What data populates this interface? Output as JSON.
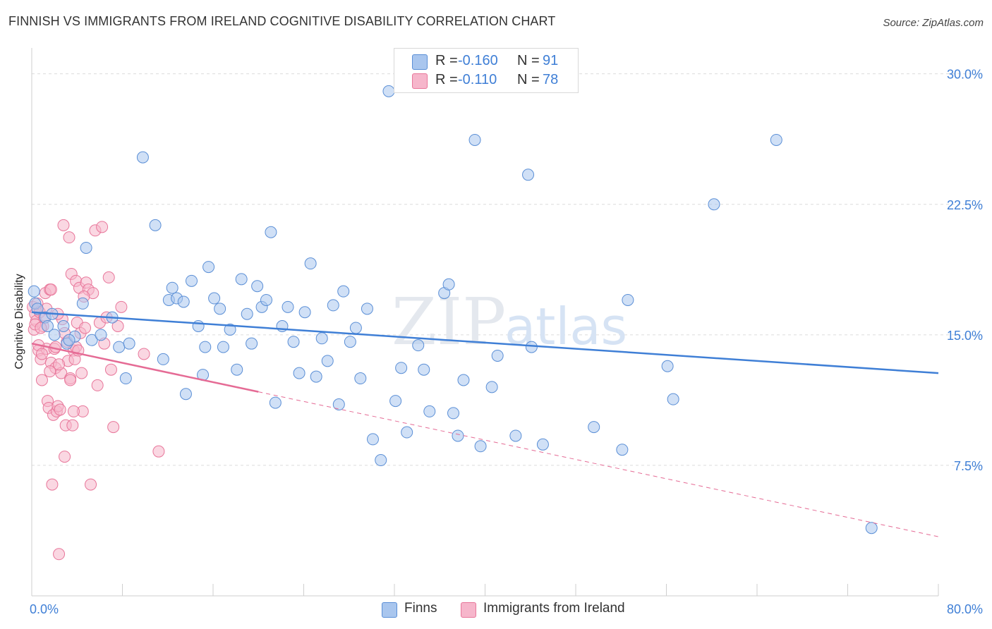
{
  "title": "FINNISH VS IMMIGRANTS FROM IRELAND COGNITIVE DISABILITY CORRELATION CHART",
  "source": "Source: ZipAtlas.com",
  "watermark": {
    "zip": "ZIP",
    "atlas": "atlas"
  },
  "colors": {
    "blue": "#5b8fd6",
    "blue_fill": "#a9c6ee",
    "blue_line": "#3f7fd6",
    "pink": "#e8769a",
    "pink_fill": "#f6b6cb",
    "pink_line": "#e56b95",
    "axis_text": "#3f7fd6",
    "grid": "#dcdcdc"
  },
  "stats": [
    {
      "r_label": "R =",
      "r_value": "-0.160",
      "n_label": "N =",
      "n_value": "91",
      "color": "#a9c6ee",
      "border": "#5b8fd6",
      "value_color": "#3f7fd6"
    },
    {
      "r_label": "R =",
      "r_value": "-0.110",
      "n_label": "N =",
      "n_value": "78",
      "color": "#f6b6cb",
      "border": "#e8769a",
      "value_color": "#3f7fd6"
    }
  ],
  "legend": [
    {
      "label": "Finns",
      "color": "#a9c6ee",
      "border": "#5b8fd6"
    },
    {
      "label": "Immigrants from Ireland",
      "color": "#f6b6cb",
      "border": "#e8769a"
    }
  ],
  "chart_data": {
    "type": "scatter",
    "title": "FINNISH VS IMMIGRANTS FROM IRELAND COGNITIVE DISABILITY CORRELATION CHART",
    "xlabel": "",
    "ylabel": "Cognitive Disability",
    "xlim": [
      0,
      80
    ],
    "ylim": [
      0,
      31
    ],
    "x_tick_labels": [
      {
        "value": 0,
        "label": "0.0%"
      },
      {
        "value": 80,
        "label": "80.0%"
      }
    ],
    "y_tick_labels": [
      {
        "value": 7.5,
        "label": "7.5%"
      },
      {
        "value": 15,
        "label": "15.0%"
      },
      {
        "value": 22.5,
        "label": "22.5%"
      },
      {
        "value": 30,
        "label": "30.0%"
      }
    ],
    "grid": true,
    "series": [
      {
        "name": "Finns",
        "r": -0.16,
        "n": 91,
        "trend": {
          "x": [
            0,
            80
          ],
          "y": [
            16.3,
            12.8
          ]
        },
        "points": [
          [
            0.2,
            17.5
          ],
          [
            0.3,
            16.8
          ],
          [
            0.5,
            16.5
          ],
          [
            1.2,
            16.0
          ],
          [
            1.4,
            15.5
          ],
          [
            1.8,
            16.2
          ],
          [
            2.0,
            15.0
          ],
          [
            2.8,
            15.5
          ],
          [
            3.1,
            14.5
          ],
          [
            3.8,
            14.9
          ],
          [
            3.3,
            14.7
          ],
          [
            4.5,
            16.8
          ],
          [
            5.3,
            14.7
          ],
          [
            4.8,
            20.0
          ],
          [
            6.1,
            15.0
          ],
          [
            7.1,
            16.0
          ],
          [
            7.7,
            14.3
          ],
          [
            8.6,
            14.5
          ],
          [
            8.3,
            12.5
          ],
          [
            9.8,
            25.2
          ],
          [
            10.9,
            21.3
          ],
          [
            11.6,
            13.6
          ],
          [
            12.1,
            17.0
          ],
          [
            12.4,
            17.7
          ],
          [
            12.8,
            17.1
          ],
          [
            13.4,
            16.9
          ],
          [
            13.6,
            11.6
          ],
          [
            14.1,
            18.1
          ],
          [
            14.7,
            15.5
          ],
          [
            15.1,
            12.7
          ],
          [
            15.3,
            14.3
          ],
          [
            15.6,
            18.9
          ],
          [
            16.1,
            17.1
          ],
          [
            16.6,
            16.5
          ],
          [
            16.9,
            14.3
          ],
          [
            17.5,
            15.3
          ],
          [
            18.1,
            13.0
          ],
          [
            18.5,
            18.2
          ],
          [
            19.0,
            16.2
          ],
          [
            19.4,
            14.5
          ],
          [
            19.9,
            17.8
          ],
          [
            20.3,
            16.6
          ],
          [
            20.7,
            17.0
          ],
          [
            21.1,
            20.9
          ],
          [
            21.5,
            11.1
          ],
          [
            22.1,
            15.5
          ],
          [
            22.6,
            16.6
          ],
          [
            23.1,
            14.6
          ],
          [
            23.6,
            12.8
          ],
          [
            24.1,
            16.3
          ],
          [
            24.6,
            19.1
          ],
          [
            25.1,
            12.6
          ],
          [
            25.6,
            14.8
          ],
          [
            26.1,
            13.5
          ],
          [
            26.6,
            16.7
          ],
          [
            27.1,
            11.0
          ],
          [
            27.5,
            17.5
          ],
          [
            28.1,
            14.6
          ],
          [
            28.6,
            15.4
          ],
          [
            29.0,
            12.5
          ],
          [
            29.6,
            16.5
          ],
          [
            30.1,
            9.0
          ],
          [
            30.8,
            7.8
          ],
          [
            31.5,
            29.0
          ],
          [
            32.1,
            11.2
          ],
          [
            32.6,
            13.1
          ],
          [
            33.1,
            9.4
          ],
          [
            34.1,
            14.4
          ],
          [
            34.6,
            13.0
          ],
          [
            35.1,
            10.6
          ],
          [
            36.4,
            17.4
          ],
          [
            36.8,
            17.9
          ],
          [
            37.2,
            10.5
          ],
          [
            37.6,
            9.2
          ],
          [
            38.1,
            12.4
          ],
          [
            39.1,
            26.2
          ],
          [
            39.6,
            8.6
          ],
          [
            40.6,
            12.0
          ],
          [
            41.1,
            13.8
          ],
          [
            42.7,
            9.2
          ],
          [
            43.8,
            24.2
          ],
          [
            44.1,
            14.3
          ],
          [
            45.1,
            8.7
          ],
          [
            49.6,
            9.7
          ],
          [
            52.1,
            8.4
          ],
          [
            52.6,
            17.0
          ],
          [
            56.1,
            13.2
          ],
          [
            56.6,
            11.3
          ],
          [
            60.2,
            22.5
          ],
          [
            65.7,
            26.2
          ],
          [
            74.1,
            3.9
          ]
        ]
      },
      {
        "name": "Immigrants from Ireland",
        "r": -0.11,
        "n": 78,
        "trend": {
          "x": [
            0,
            80
          ],
          "y": [
            14.5,
            3.4
          ]
        },
        "trend_solid_end_x": 20,
        "points": [
          [
            0.1,
            16.6
          ],
          [
            0.2,
            15.3
          ],
          [
            0.3,
            16.2
          ],
          [
            0.4,
            15.8
          ],
          [
            0.5,
            16.8
          ],
          [
            0.6,
            14.1
          ],
          [
            0.7,
            16.3
          ],
          [
            0.8,
            13.6
          ],
          [
            0.9,
            12.4
          ],
          [
            1.0,
            15.5
          ],
          [
            1.1,
            16.0
          ],
          [
            1.2,
            17.4
          ],
          [
            1.3,
            14.2
          ],
          [
            1.4,
            11.2
          ],
          [
            1.5,
            10.8
          ],
          [
            1.6,
            17.6
          ],
          [
            1.7,
            13.4
          ],
          [
            1.8,
            6.4
          ],
          [
            1.9,
            10.4
          ],
          [
            2.0,
            14.2
          ],
          [
            2.1,
            13.1
          ],
          [
            2.2,
            10.6
          ],
          [
            2.3,
            10.9
          ],
          [
            2.4,
            2.4
          ],
          [
            2.5,
            10.7
          ],
          [
            2.6,
            12.8
          ],
          [
            2.7,
            15.9
          ],
          [
            2.8,
            21.3
          ],
          [
            2.9,
            8.0
          ],
          [
            3.0,
            9.8
          ],
          [
            3.1,
            14.6
          ],
          [
            3.2,
            13.5
          ],
          [
            3.3,
            20.6
          ],
          [
            3.4,
            12.5
          ],
          [
            3.5,
            18.5
          ],
          [
            3.6,
            9.8
          ],
          [
            3.7,
            14.1
          ],
          [
            3.8,
            13.6
          ],
          [
            3.9,
            18.1
          ],
          [
            4.0,
            15.7
          ],
          [
            4.2,
            17.7
          ],
          [
            4.3,
            15.1
          ],
          [
            4.4,
            12.8
          ],
          [
            4.5,
            10.6
          ],
          [
            4.7,
            15.4
          ],
          [
            4.8,
            18.0
          ],
          [
            5.0,
            17.6
          ],
          [
            5.2,
            6.4
          ],
          [
            5.4,
            17.4
          ],
          [
            5.6,
            21.0
          ],
          [
            5.8,
            12.1
          ],
          [
            6.0,
            15.7
          ],
          [
            6.2,
            21.2
          ],
          [
            6.4,
            14.5
          ],
          [
            6.6,
            16.0
          ],
          [
            6.8,
            18.3
          ],
          [
            7.0,
            13.0
          ],
          [
            7.2,
            9.7
          ],
          [
            7.6,
            15.5
          ],
          [
            7.9,
            16.6
          ],
          [
            0.3,
            15.6
          ],
          [
            0.6,
            14.4
          ],
          [
            0.9,
            13.9
          ],
          [
            1.3,
            16.5
          ],
          [
            1.7,
            17.6
          ],
          [
            2.1,
            14.3
          ],
          [
            2.4,
            13.3
          ],
          [
            2.9,
            15.1
          ],
          [
            3.4,
            12.4
          ],
          [
            3.9,
            14.3
          ],
          [
            0.8,
            15.4
          ],
          [
            1.6,
            12.9
          ],
          [
            2.3,
            16.2
          ],
          [
            3.7,
            10.6
          ],
          [
            4.1,
            14.1
          ],
          [
            4.6,
            17.2
          ],
          [
            9.9,
            13.9
          ],
          [
            11.2,
            8.3
          ]
        ]
      }
    ]
  }
}
